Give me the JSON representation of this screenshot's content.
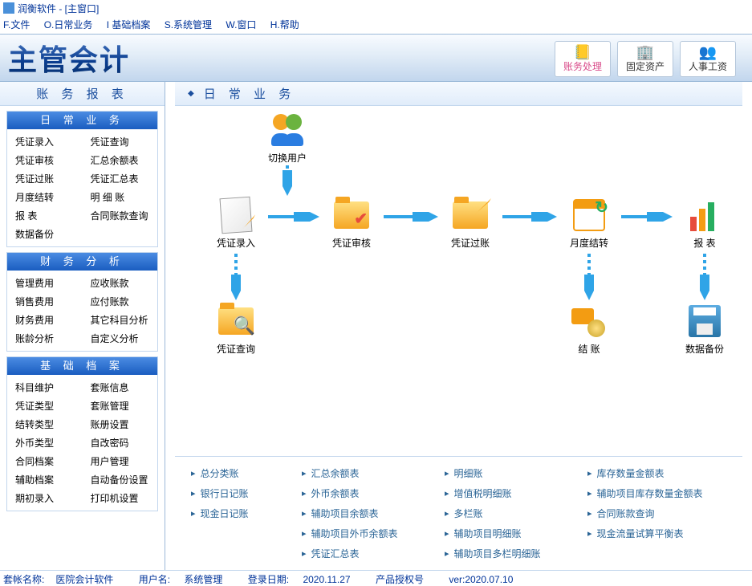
{
  "window": {
    "title": "润衡软件 - [主窗口]"
  },
  "menu": {
    "file": "F.文件",
    "daily": "O.日常业务",
    "base": "I 基础档案",
    "sys": "S.系统管理",
    "win": "W.窗口",
    "help": "H.帮助"
  },
  "logo": "主管会计",
  "header_buttons": {
    "b1": "账务处理",
    "b2": "固定资产",
    "b3": "人事工资"
  },
  "sidebar": {
    "title": "账 务 报 表",
    "groups": [
      {
        "title": "日 常 业 务",
        "items": [
          "凭证录入",
          "凭证查询",
          "凭证审核",
          "汇总余额表",
          "凭证过账",
          "凭证汇总表",
          "月度结转",
          "明 细 账",
          "报   表",
          "合同账款查询",
          "数据备份",
          ""
        ]
      },
      {
        "title": "财 务 分 析",
        "items": [
          "管理费用",
          "应收账款",
          "销售费用",
          "应付账款",
          "财务费用",
          "其它科目分析",
          "账龄分析",
          "自定义分析"
        ]
      },
      {
        "title": "基 础 档 案",
        "items": [
          "科目维护",
          "套账信息",
          "凭证类型",
          "套账管理",
          "结转类型",
          "账册设置",
          "外币类型",
          "自改密码",
          "合同档案",
          "用户管理",
          "辅助档案",
          "自动备份设置",
          "期初录入",
          "打印机设置"
        ]
      }
    ]
  },
  "content": {
    "title": "日 常 业 务",
    "nodes": {
      "switch_user": "切换用户",
      "entry": "凭证录入",
      "audit": "凭证审核",
      "post": "凭证过账",
      "monthly": "月度结转",
      "report": "报 表",
      "query": "凭证查询",
      "settle": "结 账",
      "backup": "数据备份"
    },
    "links": [
      "总分类账",
      "汇总余额表",
      "明细账",
      "库存数量金额表",
      "银行日记账",
      "外币余额表",
      "增值税明细账",
      "辅助项目库存数量金额表",
      "现金日记账",
      "辅助项目余额表",
      "多栏账",
      "合同账款查询",
      "",
      "辅助项目外币余额表",
      "辅助项目明细账",
      "现金流量试算平衡表",
      "",
      "凭证汇总表",
      "辅助项目多栏明细账",
      ""
    ]
  },
  "status": {
    "acct_label": "套帐名称:",
    "acct": "医院会计软件",
    "user_label": "用户名:",
    "user": "系统管理",
    "date_label": "登录日期:",
    "date": "2020.11.27",
    "lic_label": "产品授权号",
    "ver": "ver:2020.07.10"
  },
  "colors": {
    "arrow": "#2fa4e7"
  }
}
